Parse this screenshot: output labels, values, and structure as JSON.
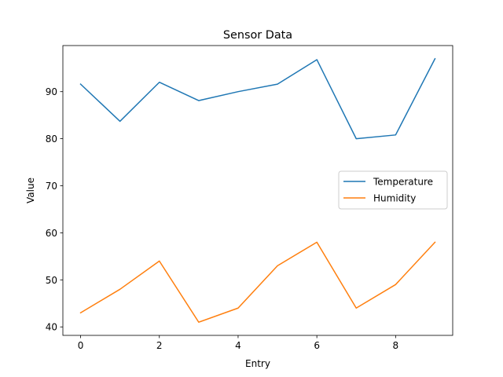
{
  "chart_data": {
    "type": "line",
    "title": "Sensor Data",
    "xlabel": "Entry",
    "ylabel": "Value",
    "x": [
      0,
      1,
      2,
      3,
      4,
      5,
      6,
      7,
      8,
      9
    ],
    "xlim": [
      -0.45,
      9.45
    ],
    "ylim": [
      38.2,
      99.8
    ],
    "xticks": [
      0,
      2,
      4,
      6,
      8
    ],
    "yticks": [
      40,
      50,
      60,
      70,
      80,
      90
    ],
    "grid": false,
    "legend_position": "center-right",
    "series": [
      {
        "name": "Temperature",
        "color": "#1f77b4",
        "values": [
          91.6,
          83.7,
          92.0,
          88.1,
          90.0,
          91.6,
          96.8,
          80.0,
          80.8,
          97.0
        ]
      },
      {
        "name": "Humidity",
        "color": "#ff7f0e",
        "values": [
          43,
          48,
          54,
          41,
          44,
          53,
          58,
          44,
          49,
          58
        ]
      }
    ]
  }
}
